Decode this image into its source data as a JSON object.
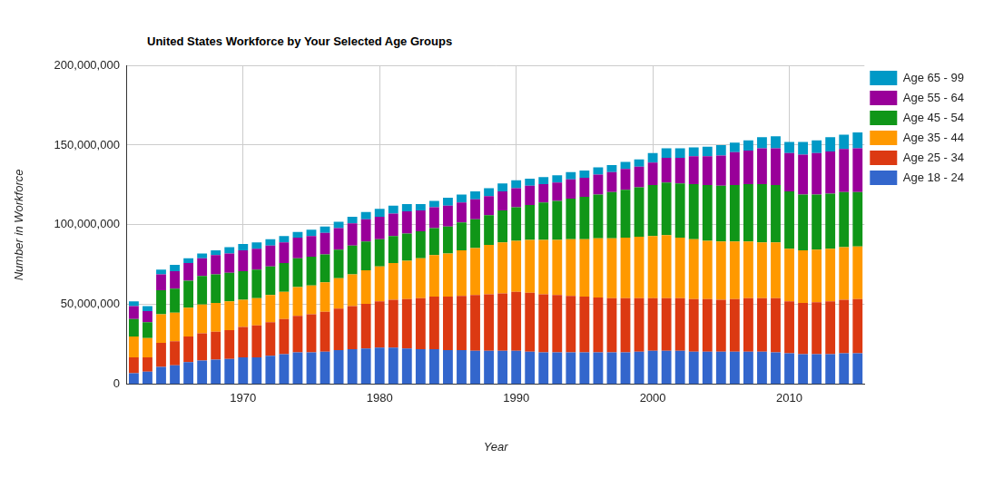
{
  "chart_data": {
    "type": "bar",
    "title": "United States Workforce by Your Selected Age Groups",
    "x_label": "Year",
    "y_label": "Number in Workforce",
    "stacked": true,
    "grid": true,
    "legend": "right",
    "x": [
      1962,
      1963,
      1964,
      1965,
      1966,
      1967,
      1968,
      1969,
      1970,
      1971,
      1972,
      1973,
      1974,
      1975,
      1976,
      1977,
      1978,
      1979,
      1980,
      1981,
      1982,
      1983,
      1984,
      1985,
      1986,
      1987,
      1988,
      1989,
      1990,
      1991,
      1992,
      1993,
      1994,
      1995,
      1996,
      1997,
      1998,
      1999,
      2000,
      2001,
      2002,
      2003,
      2004,
      2005,
      2006,
      2007,
      2008,
      2009,
      2010,
      2011,
      2012,
      2013,
      2014,
      2015
    ],
    "xlim": [
      1961.5,
      2015.5
    ],
    "xticks": [
      1970,
      1980,
      1990,
      2000,
      2010
    ],
    "ylim": [
      0,
      200000000
    ],
    "yticks": [
      0,
      {
        "value": 50000000,
        "label": "50,000,000"
      },
      {
        "value": 100000000,
        "label": "100,000,000"
      },
      {
        "value": 150000000,
        "label": "150,000,000"
      },
      {
        "value": 200000000,
        "label": "200,000,000"
      }
    ],
    "series": [
      {
        "name": "Age 18 - 24",
        "color": "#3366cc",
        "values": [
          7000000,
          8000000,
          11000000,
          12000000,
          14000000,
          15000000,
          15500000,
          16000000,
          17000000,
          17000000,
          18000000,
          19000000,
          20000000,
          20000000,
          20500000,
          21500000,
          22000000,
          22500000,
          23000000,
          23000000,
          22500000,
          22000000,
          22000000,
          21500000,
          21500000,
          21000000,
          21000000,
          21000000,
          21000000,
          20500000,
          20000000,
          20000000,
          20000000,
          20000000,
          20000000,
          20000000,
          20000000,
          20500000,
          21000000,
          21000000,
          21000000,
          20500000,
          20500000,
          20500000,
          20500000,
          20500000,
          20500000,
          20000000,
          19500000,
          19000000,
          19000000,
          19000000,
          19500000,
          19500000
        ]
      },
      {
        "name": "Age 25 - 34",
        "color": "#dc3912",
        "values": [
          10000000,
          9000000,
          15000000,
          15000000,
          16000000,
          17000000,
          17500000,
          18000000,
          19000000,
          20000000,
          21000000,
          22000000,
          23000000,
          24000000,
          25000000,
          26000000,
          27000000,
          28000000,
          29000000,
          30000000,
          31000000,
          32000000,
          33000000,
          33500000,
          34000000,
          35000000,
          35500000,
          36000000,
          37000000,
          37000000,
          36500000,
          36000000,
          35500000,
          35000000,
          34500000,
          34000000,
          34000000,
          33500000,
          33000000,
          33000000,
          33000000,
          33000000,
          33000000,
          32500000,
          33000000,
          33500000,
          33500000,
          34000000,
          32500000,
          32000000,
          32500000,
          33000000,
          33500000,
          34000000
        ]
      },
      {
        "name": "Age 35 - 44",
        "color": "#ff9900",
        "values": [
          13000000,
          12000000,
          18000000,
          18000000,
          18000000,
          18000000,
          18000000,
          18000000,
          17000000,
          17000000,
          17000000,
          17000000,
          18000000,
          18000000,
          18500000,
          19000000,
          20000000,
          21000000,
          22000000,
          23000000,
          24000000,
          25000000,
          26000000,
          27000000,
          28500000,
          29500000,
          31000000,
          32000000,
          32000000,
          33000000,
          34000000,
          34500000,
          35500000,
          36000000,
          37000000,
          37500000,
          38000000,
          38500000,
          39000000,
          39500000,
          38000000,
          37500000,
          36500000,
          36500000,
          36000000,
          35500000,
          35000000,
          35000000,
          33000000,
          33000000,
          33000000,
          33000000,
          33000000,
          33000000
        ]
      },
      {
        "name": "Age 45 - 54",
        "color": "#109618",
        "values": [
          11000000,
          10000000,
          15000000,
          15000000,
          17000000,
          18000000,
          18000000,
          18000000,
          18000000,
          18000000,
          18000000,
          18000000,
          18000000,
          18000000,
          17500000,
          18000000,
          18000000,
          18000000,
          17000000,
          17000000,
          17000000,
          17000000,
          17000000,
          17000000,
          17500000,
          18000000,
          18500000,
          20000000,
          21000000,
          22000000,
          23500000,
          24500000,
          25500000,
          26500000,
          27500000,
          29000000,
          30000000,
          31000000,
          32000000,
          33000000,
          34000000,
          34500000,
          35000000,
          35000000,
          35500000,
          36000000,
          36500000,
          36000000,
          36000000,
          35000000,
          34500000,
          34500000,
          34500000,
          34000000
        ]
      },
      {
        "name": "Age 55 - 64",
        "color": "#990099",
        "values": [
          8000000,
          7000000,
          10000000,
          11000000,
          11000000,
          11000000,
          12000000,
          12000000,
          13000000,
          13000000,
          13000000,
          13000000,
          13000000,
          13000000,
          13500000,
          13500000,
          14000000,
          14000000,
          14000000,
          14000000,
          14000000,
          13000000,
          13000000,
          13000000,
          12500000,
          12500000,
          12000000,
          12000000,
          12000000,
          12000000,
          11500000,
          11500000,
          12000000,
          12000000,
          12500000,
          12500000,
          13000000,
          13000000,
          14000000,
          15500000,
          16000000,
          17500000,
          18000000,
          19000000,
          20500000,
          21000000,
          22500000,
          23000000,
          24000000,
          25000000,
          26000000,
          26500000,
          27000000,
          27500000
        ]
      },
      {
        "name": "Age 65 - 99",
        "color": "#0099c6",
        "values": [
          3000000,
          3000000,
          3000000,
          4000000,
          3000000,
          3000000,
          3000000,
          4000000,
          4000000,
          4000000,
          4000000,
          4000000,
          3500000,
          4000000,
          4000000,
          4000000,
          4000000,
          4500000,
          5000000,
          5000000,
          4500000,
          4000000,
          4000000,
          5000000,
          5000000,
          5000000,
          5000000,
          5000000,
          5000000,
          4500000,
          4500000,
          4500000,
          4500000,
          4500000,
          4500000,
          4500000,
          4500000,
          4500000,
          6000000,
          6000000,
          6000000,
          5500000,
          6000000,
          6500000,
          6000000,
          6500000,
          7000000,
          7500000,
          7000000,
          8000000,
          8000000,
          9000000,
          9000000,
          10000000
        ]
      }
    ]
  }
}
